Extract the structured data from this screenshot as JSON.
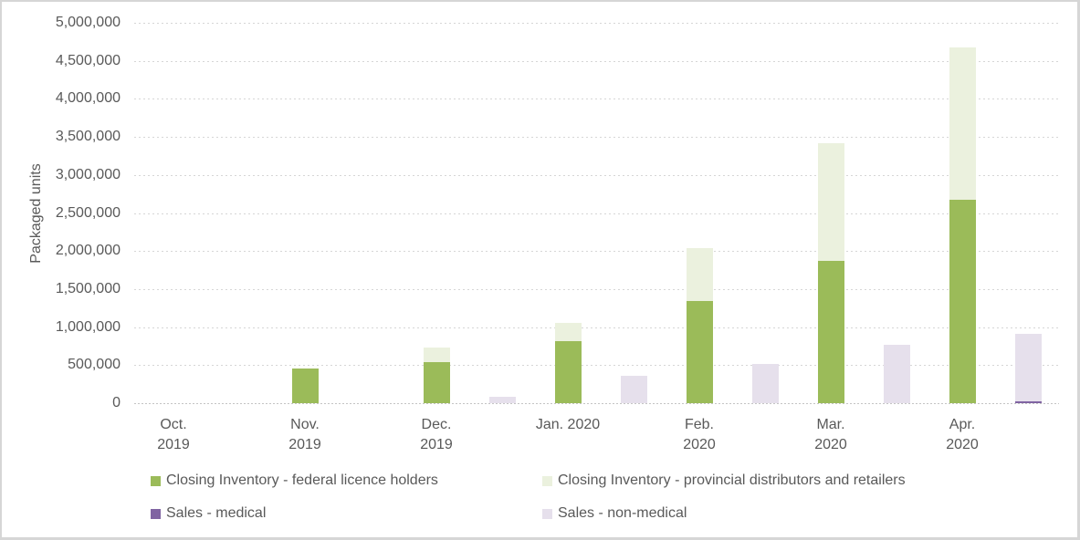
{
  "chart_data": {
    "type": "bar",
    "subtype": "clustered-stacked-columns",
    "title": "",
    "xlabel": "",
    "ylabel": "Packaged units",
    "ylim": [
      0,
      5000000
    ],
    "ytick_step": 500000,
    "y_tick_labels_top_down": [
      "5,000,000",
      "4,500,000",
      "4,000,000",
      "3,500,000",
      "3,000,000",
      "2,500,000",
      "2,000,000",
      "1,500,000",
      "1,000,000",
      "500,000",
      "0"
    ],
    "grid": "horizontal-dotted",
    "categories": [
      "Oct. 2019",
      "Nov. 2019",
      "Dec. 2019",
      "Jan. 2020",
      "Feb. 2020",
      "Mar. 2020",
      "Apr. 2020"
    ],
    "category_label_lines": [
      [
        "Oct.",
        "2019"
      ],
      [
        "Nov.",
        "2019"
      ],
      [
        "Dec.",
        "2019"
      ],
      [
        "Jan. 2020"
      ],
      [
        "Feb.",
        "2020"
      ],
      [
        "Mar.",
        "2020"
      ],
      [
        "Apr.",
        "2020"
      ]
    ],
    "bar_groups": [
      {
        "id": "closing-inventory",
        "series": [
          {
            "name": "Closing Inventory - federal licence holders",
            "color": "#9BBB59",
            "values": [
              0,
              450000,
              540000,
              810000,
              1340000,
              1870000,
              2670000
            ]
          },
          {
            "name": "Closing Inventory - provincial distributors and retailers",
            "color": "#EBF1DE",
            "values": [
              0,
              0,
              190000,
              250000,
              700000,
              1550000,
              2010000
            ]
          }
        ]
      },
      {
        "id": "sales",
        "series": [
          {
            "name": "Sales - medical",
            "color": "#8064A2",
            "values": [
              0,
              0,
              0,
              0,
              0,
              0,
              20000
            ]
          },
          {
            "name": "Sales - non-medical",
            "color": "#E6E0EC",
            "values": [
              0,
              0,
              80000,
              360000,
              520000,
              770000,
              890000
            ]
          }
        ]
      }
    ],
    "legend": {
      "position": "bottom",
      "rows": [
        [
          {
            "label": "Closing Inventory - federal licence holders",
            "color": "#9BBB59"
          },
          {
            "label": "Closing Inventory - provincial distributors and retailers",
            "color": "#EBF1DE"
          }
        ],
        [
          {
            "label": "Sales - medical",
            "color": "#8064A2"
          },
          {
            "label": "Sales - non-medical",
            "color": "#E6E0EC"
          }
        ]
      ]
    },
    "colors": {
      "text": "#595959",
      "gridline": "#D6D6D6",
      "frame_border": "#D6D6D6"
    }
  }
}
